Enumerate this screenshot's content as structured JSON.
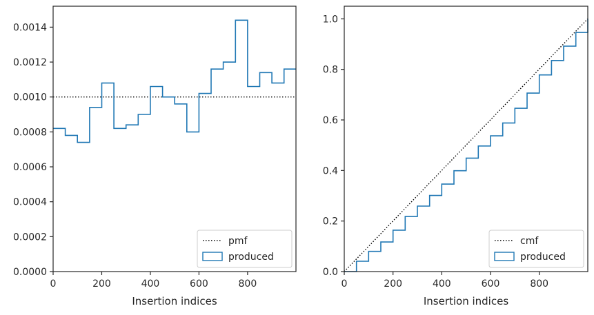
{
  "chart_data": [
    {
      "type": "step",
      "xlabel": "Insertion indices",
      "ylabel": "",
      "xlim": [
        0,
        999
      ],
      "ylim": [
        0,
        0.00152
      ],
      "x_ticks": [
        0,
        200,
        400,
        600,
        800
      ],
      "x_tick_labels": [
        "0",
        "200",
        "400",
        "600",
        "800"
      ],
      "y_ticks": [
        0,
        0.0002,
        0.0004,
        0.0006,
        0.0008,
        0.001,
        0.0012,
        0.0014
      ],
      "y_tick_labels": [
        "0.0000",
        "0.0002",
        "0.0004",
        "0.0006",
        "0.0008",
        "0.0010",
        "0.0012",
        "0.0014"
      ],
      "grid": false,
      "legend": {
        "placement": "lower-right",
        "entries": [
          "pmf",
          "produced"
        ]
      },
      "series": [
        {
          "name": "pmf",
          "style": "dotted",
          "color": "#000000",
          "x": [
            0,
            999
          ],
          "y": [
            0.001,
            0.001
          ]
        },
        {
          "name": "produced",
          "style": "step-histogram",
          "color": "#1f77b4",
          "bin_edges": [
            0,
            50,
            100,
            150,
            200,
            250,
            300,
            350,
            400,
            450,
            500,
            550,
            600,
            650,
            700,
            750,
            800,
            850,
            900,
            950,
            1000
          ],
          "values": [
            0.00082,
            0.00078,
            0.00074,
            0.00094,
            0.00108,
            0.00082,
            0.00084,
            0.0009,
            0.00106,
            0.001,
            0.00096,
            0.0008,
            0.00102,
            0.00116,
            0.0012,
            0.00144,
            0.00106,
            0.00114,
            0.00108,
            0.00116
          ]
        }
      ]
    },
    {
      "type": "line",
      "xlabel": "Insertion indices",
      "ylabel": "",
      "xlim": [
        0,
        999
      ],
      "ylim": [
        0,
        1.05
      ],
      "x_ticks": [
        0,
        200,
        400,
        600,
        800
      ],
      "x_tick_labels": [
        "0",
        "200",
        "400",
        "600",
        "800"
      ],
      "y_ticks": [
        0,
        0.2,
        0.4,
        0.6,
        0.8,
        1.0
      ],
      "y_tick_labels": [
        "0.0",
        "0.2",
        "0.4",
        "0.6",
        "0.8",
        "1.0"
      ],
      "grid": false,
      "legend": {
        "placement": "lower-right",
        "entries": [
          "cmf",
          "produced"
        ]
      },
      "series": [
        {
          "name": "cmf",
          "style": "dotted",
          "color": "#000000",
          "x": [
            0,
            999
          ],
          "y": [
            0,
            1.0
          ]
        },
        {
          "name": "produced",
          "style": "step",
          "color": "#1f77b4",
          "x": [
            0,
            50,
            100,
            150,
            200,
            250,
            300,
            350,
            400,
            450,
            500,
            550,
            600,
            650,
            700,
            750,
            800,
            850,
            900,
            950,
            999
          ],
          "y": [
            0,
            0.041,
            0.08,
            0.117,
            0.164,
            0.218,
            0.259,
            0.301,
            0.346,
            0.399,
            0.449,
            0.497,
            0.537,
            0.588,
            0.646,
            0.706,
            0.778,
            0.835,
            0.892,
            0.946,
            1.0
          ]
        }
      ]
    }
  ]
}
